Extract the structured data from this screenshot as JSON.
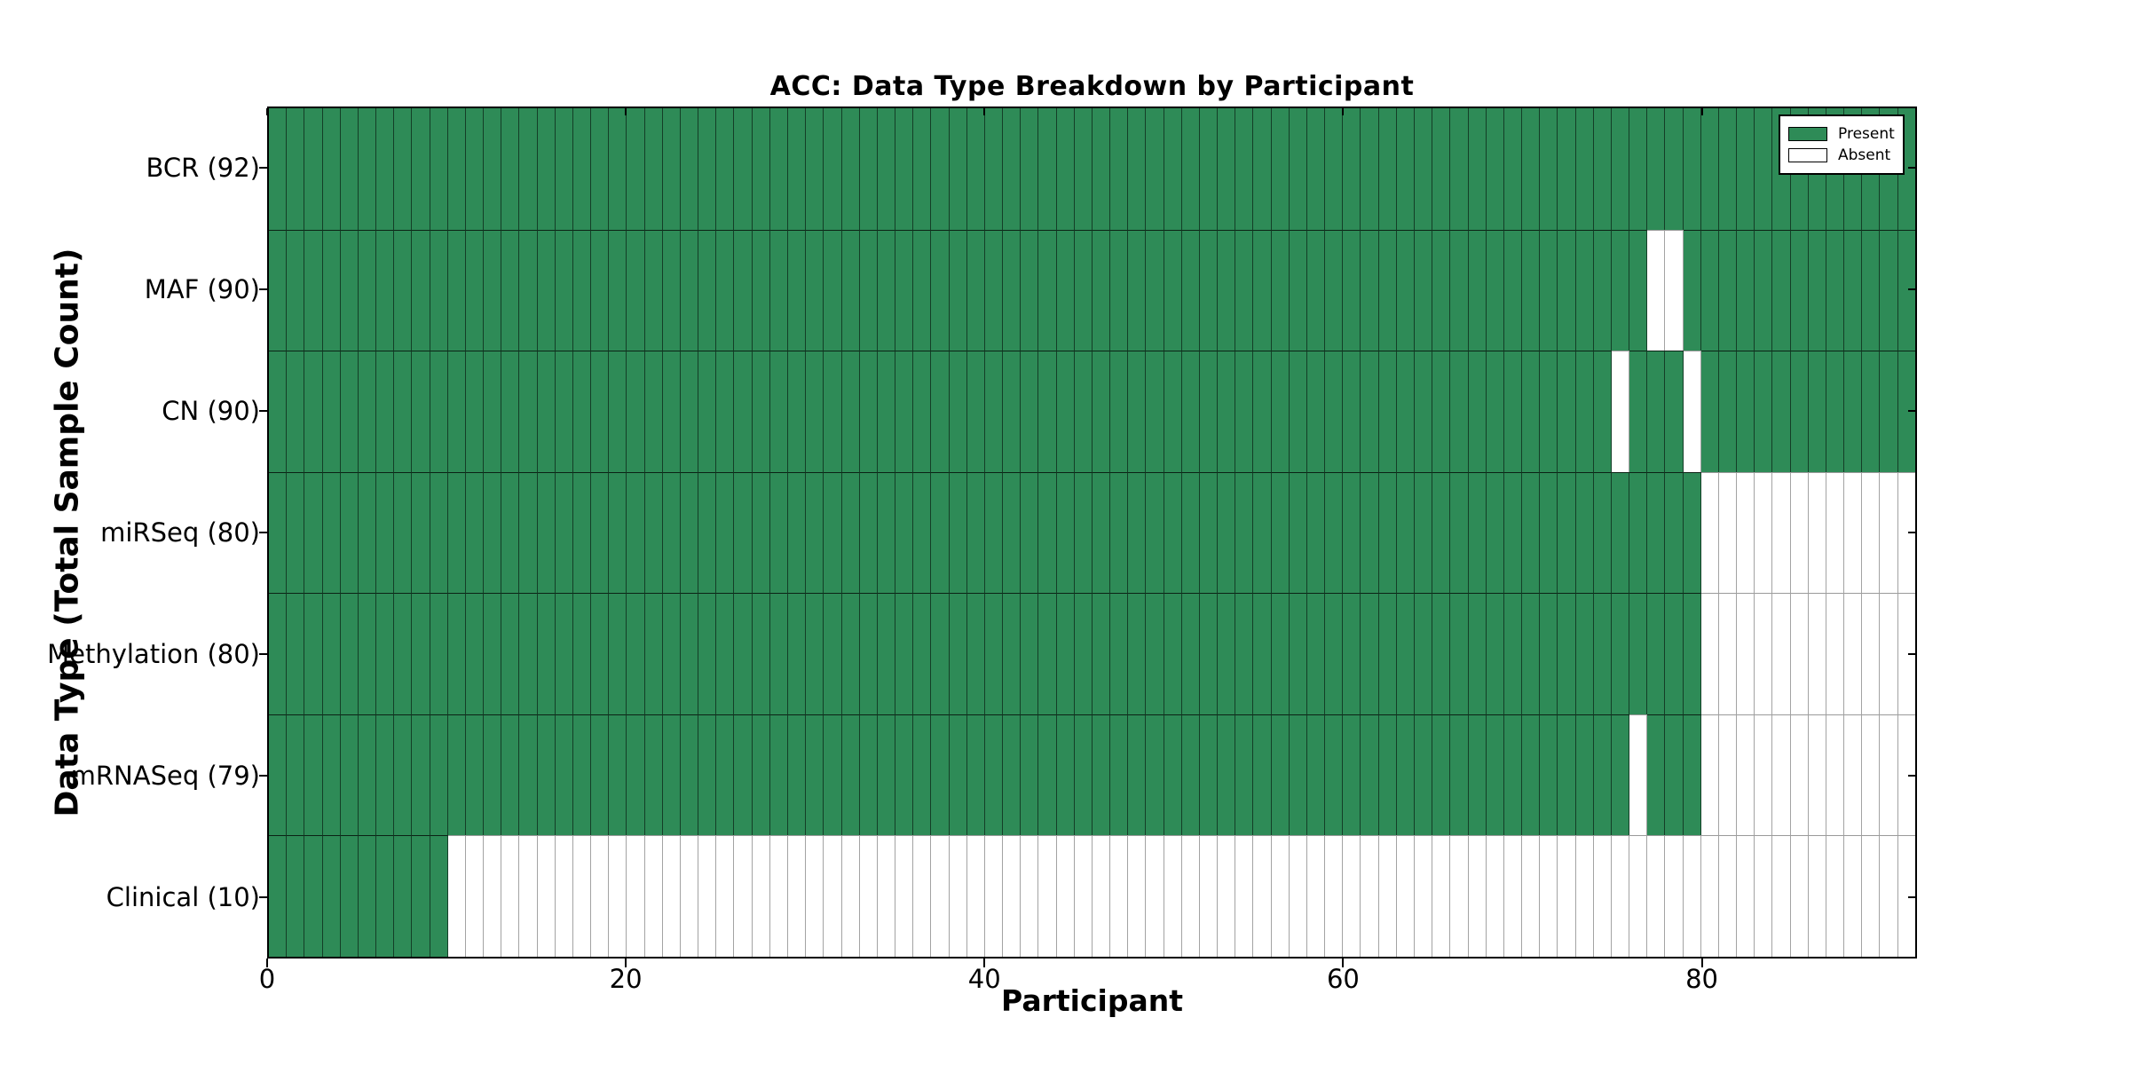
{
  "figure": {
    "title": "ACC: Data Type Breakdown by Participant",
    "x_axis_title": "Participant",
    "y_axis_title": "Data Type (Total Sample Count)"
  },
  "legend": {
    "items": [
      {
        "label": "Present",
        "swatch": "present"
      },
      {
        "label": "Absent",
        "swatch": "absent"
      }
    ]
  },
  "chart_data": {
    "type": "heatmap",
    "title": "ACC: Data Type Breakdown by Participant",
    "xlabel": "Participant",
    "ylabel": "Data Type (Total Sample Count)",
    "n_participants": 92,
    "xlim": [
      0,
      92
    ],
    "xticks": [
      0,
      20,
      40,
      60,
      80
    ],
    "grid": false,
    "legend_position": "upper right",
    "colors": {
      "present": "#2e8b57",
      "absent": "#ffffff"
    },
    "legend": [
      "Present",
      "Absent"
    ],
    "rows": [
      {
        "label": "BCR (92)",
        "data_type": "BCR",
        "present_count": 92,
        "absent_participants": []
      },
      {
        "label": "MAF (90)",
        "data_type": "MAF",
        "present_count": 90,
        "absent_participants": [
          77,
          78
        ]
      },
      {
        "label": "CN (90)",
        "data_type": "CN",
        "present_count": 90,
        "absent_participants": [
          75,
          79
        ]
      },
      {
        "label": "miRSeq (80)",
        "data_type": "miRSeq",
        "present_count": 80,
        "absent_participants": [
          80,
          81,
          82,
          83,
          84,
          85,
          86,
          87,
          88,
          89,
          90,
          91
        ]
      },
      {
        "label": "Methylation (80)",
        "data_type": "Methylation",
        "present_count": 80,
        "absent_participants": [
          80,
          81,
          82,
          83,
          84,
          85,
          86,
          87,
          88,
          89,
          90,
          91
        ]
      },
      {
        "label": "mRNASeq (79)",
        "data_type": "mRNASeq",
        "present_count": 79,
        "absent_participants": [
          76,
          80,
          81,
          82,
          83,
          84,
          85,
          86,
          87,
          88,
          89,
          90,
          91
        ]
      },
      {
        "label": "Clinical (10)",
        "data_type": "Clinical",
        "present_count": 10,
        "absent_participants": [
          10,
          11,
          12,
          13,
          14,
          15,
          16,
          17,
          18,
          19,
          20,
          21,
          22,
          23,
          24,
          25,
          26,
          27,
          28,
          29,
          30,
          31,
          32,
          33,
          34,
          35,
          36,
          37,
          38,
          39,
          40,
          41,
          42,
          43,
          44,
          45,
          46,
          47,
          48,
          49,
          50,
          51,
          52,
          53,
          54,
          55,
          56,
          57,
          58,
          59,
          60,
          61,
          62,
          63,
          64,
          65,
          66,
          67,
          68,
          69,
          70,
          71,
          72,
          73,
          74,
          75,
          76,
          77,
          78,
          79,
          80,
          81,
          82,
          83,
          84,
          85,
          86,
          87,
          88,
          89,
          90,
          91
        ]
      }
    ]
  }
}
